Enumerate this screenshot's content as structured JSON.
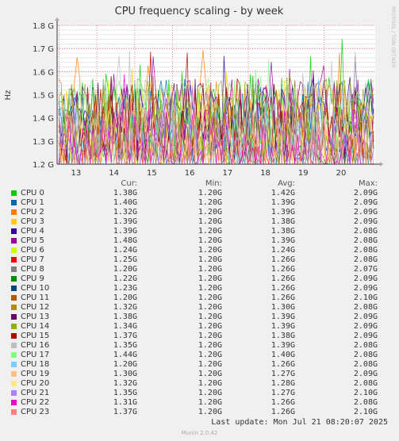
{
  "chart_data": {
    "type": "line",
    "title": "CPU frequency scaling - by week",
    "ylabel": "Hz",
    "side_label": "RRDTOOL / TOBI OETIKER",
    "ylim": [
      1.2,
      1.8
    ],
    "y_ticks": [
      "1.2 G",
      "1.3 G",
      "1.4 G",
      "1.5 G",
      "1.6 G",
      "1.7 G",
      "1.8 G"
    ],
    "y_tick_values": [
      1.2,
      1.3,
      1.4,
      1.5,
      1.6,
      1.7,
      1.8
    ],
    "x_ticks": [
      "13",
      "14",
      "15",
      "16",
      "17",
      "18",
      "19",
      "20"
    ],
    "grid": true,
    "legend_headers": {
      "cur": "Cur:",
      "min": "Min:",
      "avg": "Avg:",
      "max": "Max:"
    },
    "series": [
      {
        "name": "CPU 0",
        "color": "#00cc00",
        "cur": "1.38G",
        "min": "1.20G",
        "avg": "1.42G",
        "max": "2.09G"
      },
      {
        "name": "CPU 1",
        "color": "#0066b3",
        "cur": "1.40G",
        "min": "1.20G",
        "avg": "1.39G",
        "max": "2.09G"
      },
      {
        "name": "CPU 2",
        "color": "#ff8000",
        "cur": "1.32G",
        "min": "1.20G",
        "avg": "1.39G",
        "max": "2.09G"
      },
      {
        "name": "CPU 3",
        "color": "#ffcc00",
        "cur": "1.39G",
        "min": "1.20G",
        "avg": "1.38G",
        "max": "2.09G"
      },
      {
        "name": "CPU 4",
        "color": "#330099",
        "cur": "1.39G",
        "min": "1.20G",
        "avg": "1.38G",
        "max": "2.08G"
      },
      {
        "name": "CPU 5",
        "color": "#990099",
        "cur": "1.48G",
        "min": "1.20G",
        "avg": "1.39G",
        "max": "2.08G"
      },
      {
        "name": "CPU 6",
        "color": "#ccff00",
        "cur": "1.24G",
        "min": "1.20G",
        "avg": "1.24G",
        "max": "2.08G"
      },
      {
        "name": "CPU 7",
        "color": "#ff0000",
        "cur": "1.25G",
        "min": "1.20G",
        "avg": "1.26G",
        "max": "2.08G"
      },
      {
        "name": "CPU 8",
        "color": "#808080",
        "cur": "1.20G",
        "min": "1.20G",
        "avg": "1.26G",
        "max": "2.07G"
      },
      {
        "name": "CPU 9",
        "color": "#008f00",
        "cur": "1.22G",
        "min": "1.20G",
        "avg": "1.26G",
        "max": "2.09G"
      },
      {
        "name": "CPU 10",
        "color": "#00487d",
        "cur": "1.23G",
        "min": "1.20G",
        "avg": "1.26G",
        "max": "2.09G"
      },
      {
        "name": "CPU 11",
        "color": "#b35a00",
        "cur": "1.20G",
        "min": "1.20G",
        "avg": "1.26G",
        "max": "2.10G"
      },
      {
        "name": "CPU 12",
        "color": "#b38f00",
        "cur": "1.32G",
        "min": "1.20G",
        "avg": "1.30G",
        "max": "2.08G"
      },
      {
        "name": "CPU 13",
        "color": "#6b006b",
        "cur": "1.38G",
        "min": "1.20G",
        "avg": "1.39G",
        "max": "2.09G"
      },
      {
        "name": "CPU 14",
        "color": "#8fb300",
        "cur": "1.34G",
        "min": "1.20G",
        "avg": "1.39G",
        "max": "2.09G"
      },
      {
        "name": "CPU 15",
        "color": "#b30000",
        "cur": "1.37G",
        "min": "1.20G",
        "avg": "1.38G",
        "max": "2.09G"
      },
      {
        "name": "CPU 16",
        "color": "#bebebe",
        "cur": "1.35G",
        "min": "1.20G",
        "avg": "1.39G",
        "max": "2.08G"
      },
      {
        "name": "CPU 17",
        "color": "#80ff80",
        "cur": "1.44G",
        "min": "1.20G",
        "avg": "1.40G",
        "max": "2.08G"
      },
      {
        "name": "CPU 18",
        "color": "#80c9ff",
        "cur": "1.20G",
        "min": "1.20G",
        "avg": "1.26G",
        "max": "2.08G"
      },
      {
        "name": "CPU 19",
        "color": "#ffc080",
        "cur": "1.30G",
        "min": "1.20G",
        "avg": "1.27G",
        "max": "2.09G"
      },
      {
        "name": "CPU 20",
        "color": "#ffe680",
        "cur": "1.32G",
        "min": "1.20G",
        "avg": "1.28G",
        "max": "2.08G"
      },
      {
        "name": "CPU 21",
        "color": "#aa80ff",
        "cur": "1.35G",
        "min": "1.20G",
        "avg": "1.27G",
        "max": "2.10G"
      },
      {
        "name": "CPU 22",
        "color": "#ee00cc",
        "cur": "1.31G",
        "min": "1.20G",
        "avg": "1.26G",
        "max": "2.08G"
      },
      {
        "name": "CPU 23",
        "color": "#ff8080",
        "cur": "1.37G",
        "min": "1.20G",
        "avg": "1.26G",
        "max": "2.10G"
      }
    ]
  },
  "last_update": "Last update: Mon Jul 21 08:20:07 2025",
  "footer": "Munin 2.0.42"
}
